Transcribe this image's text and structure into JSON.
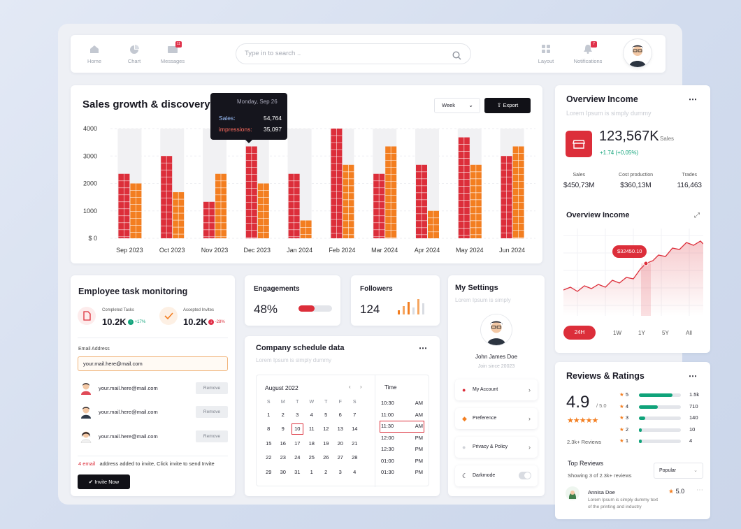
{
  "nav": {
    "items": [
      {
        "label": "Home"
      },
      {
        "label": "Chart"
      },
      {
        "label": "Messages",
        "badge": "11"
      },
      {
        "label": "Layout"
      },
      {
        "label": "Notifications",
        "badge": "7"
      }
    ],
    "search_placeholder": "Type in to search .."
  },
  "sales": {
    "title": "Sales growth & discovery",
    "period": "Week",
    "export_label": "Export",
    "tooltip": {
      "date": "Monday, Sep 26",
      "sales_label": "Sales:",
      "sales_value": "54,764",
      "impressions_label": "impressions:",
      "impressions_value": "35,097"
    }
  },
  "chart_data": {
    "type": "bar",
    "categories": [
      "Sep 2023",
      "Oct 2023",
      "Nov 2023",
      "Dec 2023",
      "Jan 2024",
      "Feb 2024",
      "Mar 2024",
      "Apr 2024",
      "May 2024",
      "Jun 2024"
    ],
    "series": [
      {
        "name": "Sales",
        "color": "#dc2e3a",
        "values": [
          2350,
          3000,
          1330,
          3350,
          2350,
          4000,
          2350,
          2680,
          3680,
          3000
        ]
      },
      {
        "name": "impressions",
        "color": "#f37e20",
        "values": [
          2000,
          1680,
          2350,
          2000,
          650,
          2680,
          3350,
          1000,
          2680,
          3350
        ]
      }
    ],
    "yticks": [
      "$ 0",
      "1000",
      "2000",
      "3000",
      "4000"
    ],
    "ylim": [
      0,
      4000
    ],
    "grid": true
  },
  "employee": {
    "title": "Employee task monitoring",
    "completed_label": "Completed Tasks",
    "completed_value": "10.2K",
    "completed_change": "+17%",
    "invites_label": "Accepted Invites",
    "invites_value": "10.2K",
    "invites_change": "-28%",
    "email_label": "Email Address",
    "email_value": "your.mail.here@mail.com",
    "people": [
      {
        "email": "your.mail.here@mail.com",
        "action": "Remove"
      },
      {
        "email": "your.mail.here@mail.com",
        "action": "Remove"
      },
      {
        "email": "your.mail.here@mail.com",
        "action": "Remove"
      }
    ],
    "footer_count": "4 email",
    "footer_text": "address added to invite, Click invite to send Invite",
    "invite_label": "Invite Now"
  },
  "engagements": {
    "title": "Engagements",
    "value": "48%",
    "percent": 48
  },
  "followers": {
    "title": "Followers",
    "value": "124"
  },
  "schedule": {
    "title": "Company schedule data",
    "subtitle": "Lorem Ipsum is simply dummy",
    "month": "August 2022",
    "weekdays": [
      "S",
      "M",
      "T",
      "W",
      "T",
      "F",
      "S"
    ],
    "weeks": [
      [
        "1",
        "2",
        "3",
        "4",
        "5",
        "6",
        "7"
      ],
      [
        "8",
        "9",
        "10",
        "11",
        "12",
        "13",
        "14"
      ],
      [
        "15",
        "16",
        "17",
        "18",
        "19",
        "20",
        "21"
      ],
      [
        "22",
        "23",
        "24",
        "25",
        "26",
        "27",
        "28"
      ],
      [
        "29",
        "30",
        "31",
        "1",
        "2",
        "3",
        "4"
      ]
    ],
    "selected_day": "10",
    "time_header": "Time",
    "times": [
      {
        "time": "10:30",
        "ampm": "AM"
      },
      {
        "time": "11:00",
        "ampm": "AM"
      },
      {
        "time": "11:30",
        "ampm": "AM"
      },
      {
        "time": "12:00",
        "ampm": "PM"
      },
      {
        "time": "12:30",
        "ampm": "PM"
      },
      {
        "time": "01:00",
        "ampm": "PM"
      },
      {
        "time": "01:30",
        "ampm": "PM"
      }
    ]
  },
  "settings": {
    "title": "My Settings",
    "subtitle": "Lorem Ipsum is simply",
    "name": "John James Doe",
    "joined": "Join since 20023",
    "items": [
      {
        "label": "My Account"
      },
      {
        "label": "Preference"
      },
      {
        "label": "Privacy & Policy"
      },
      {
        "label": "Darkmode"
      }
    ]
  },
  "overview": {
    "title": "Overview Income",
    "subtitle": "Lorem Ipsum is simply dummy",
    "value": "123,567K",
    "value_label": "Sales",
    "change": "+1.74 (+0,05%)",
    "stats": [
      {
        "label": "Sales",
        "value": "$450,73M"
      },
      {
        "label": "Cost production",
        "value": "$360,13M"
      },
      {
        "label": "Trades",
        "value": "116,463"
      }
    ],
    "chart_title": "Overview Income",
    "marker_label": "$32450.10",
    "ranges": [
      "24H",
      "1W",
      "1Y",
      "5Y",
      "All"
    ],
    "active_range": "24H"
  },
  "reviews": {
    "title": "Reviews & Ratings",
    "score": "4.9",
    "out_of": "/ 5.0",
    "count": "2.3k+ Reviews",
    "breakdown": [
      {
        "stars": "5",
        "count": "1.5k",
        "fraction": 0.8
      },
      {
        "stars": "4",
        "count": "710",
        "fraction": 0.45
      },
      {
        "stars": "3",
        "count": "140",
        "fraction": 0.15
      },
      {
        "stars": "2",
        "count": "10",
        "fraction": 0.07
      },
      {
        "stars": "1",
        "count": "4",
        "fraction": 0.07
      }
    ],
    "top_title": "Top Reviews",
    "showing": "Showing 3 of 2.3k+ reviews",
    "sort": "Popular",
    "reviewer": "Annisa Doe",
    "review_score": "5.0",
    "review_text_1": "Lorem Ipsum is simply dummy text",
    "review_text_2": "of the printing and industry"
  },
  "colors": {
    "accent": "#dc2e3a",
    "orange": "#f37e20",
    "green": "#10a37a",
    "dark": "#111117"
  }
}
